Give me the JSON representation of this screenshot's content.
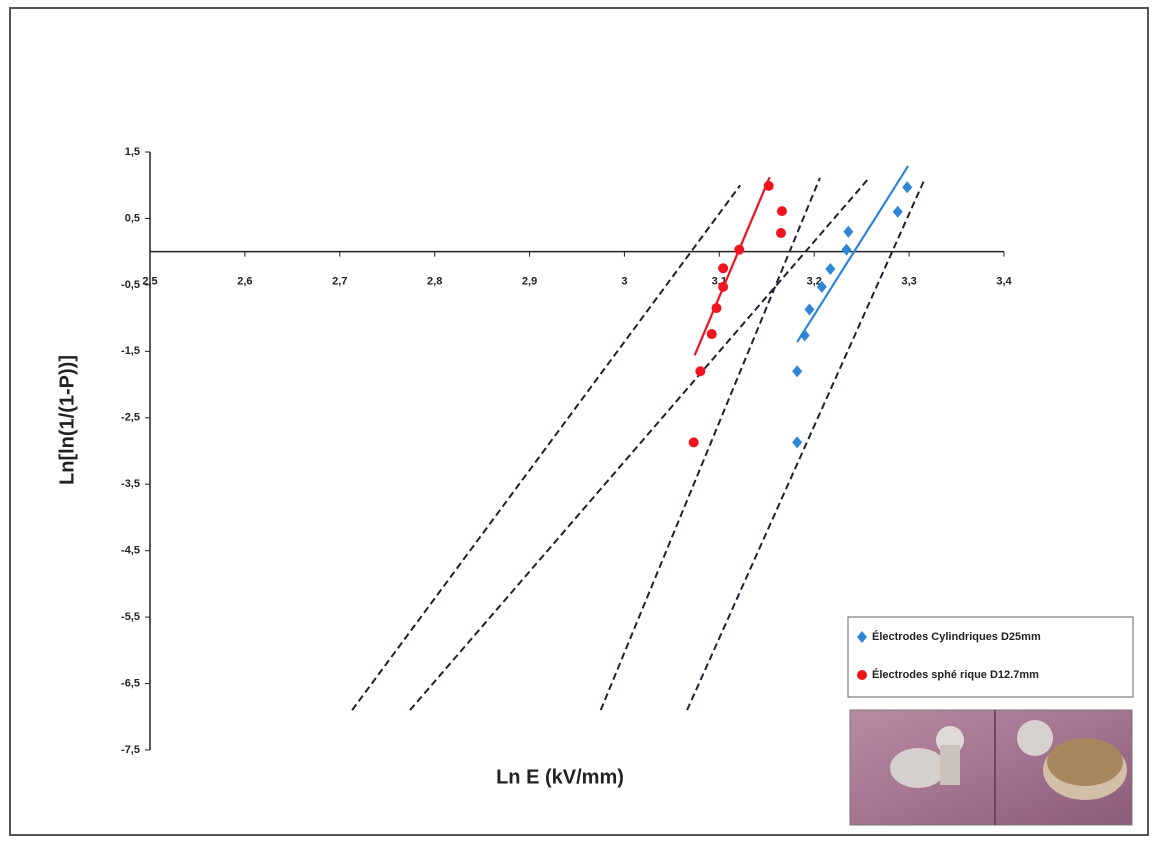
{
  "chart_data": {
    "type": "scatter",
    "x_label": "Ln E (kV/mm)",
    "y_label": "Ln[ln(1/(1-P))]",
    "xlim": [
      2.5,
      3.4
    ],
    "ylim": [
      -7.5,
      1.5
    ],
    "xticks": [
      {
        "value": 2.5,
        "label": "2,5"
      },
      {
        "value": 2.6,
        "label": "2,6"
      },
      {
        "value": 2.7,
        "label": "2,7"
      },
      {
        "value": 2.8,
        "label": "2,8"
      },
      {
        "value": 2.9,
        "label": "2,9"
      },
      3,
      {
        "value": 3.1,
        "label": "3,1"
      },
      {
        "value": 3.2,
        "label": "3,2"
      },
      {
        "value": 3.3,
        "label": "3,3"
      },
      {
        "value": 3.4,
        "label": "3,4"
      }
    ],
    "yticks": [
      {
        "value": 1.5,
        "label": "1,5"
      },
      {
        "value": 0.5,
        "label": "0,5"
      },
      {
        "value": -0.5,
        "label": "-0,5"
      },
      {
        "value": -1.5,
        "label": "-1,5"
      },
      {
        "value": -2.5,
        "label": "-2,5"
      },
      {
        "value": -3.5,
        "label": "-3,5"
      },
      {
        "value": -4.5,
        "label": "-4,5"
      },
      {
        "value": -5.5,
        "label": "-5,5"
      },
      {
        "value": -6.5,
        "label": "-6,5"
      },
      {
        "value": -7.5,
        "label": "-7,5"
      }
    ],
    "legend": "lower right",
    "series": [
      {
        "name": "Électrodes Cylindriques D25mm",
        "color": "#2e86d6",
        "marker": "diamond",
        "x": [
          3.298,
          3.288,
          3.236,
          3.234,
          3.217,
          3.208,
          3.195,
          3.19,
          3.182,
          3.182
        ],
        "values": [
          0.97,
          0.6,
          0.3,
          0.03,
          -0.26,
          -0.53,
          -0.87,
          -1.26,
          -1.8,
          -2.87
        ]
      },
      {
        "name": "Électrodes sphé rique D12.7mm",
        "color": "#f0141e",
        "marker": "circle",
        "x": [
          3.152,
          3.166,
          3.165,
          3.121,
          3.104,
          3.104,
          3.097,
          3.092,
          3.08,
          3.073
        ],
        "values": [
          0.99,
          0.61,
          0.28,
          0.03,
          -0.25,
          -0.53,
          -0.85,
          -1.24,
          -1.8,
          -2.87
        ]
      }
    ],
    "lines": [
      {
        "color": "#f0141e",
        "dashed": false,
        "x": [
          3.074,
          3.153
        ],
        "values": [
          -1.56,
          1.12
        ]
      },
      {
        "color": "#2e86d6",
        "dashed": false,
        "x": [
          3.182,
          3.299
        ],
        "values": [
          -1.36,
          1.29
        ]
      },
      {
        "color": "#1a2233",
        "dashed": true,
        "x": [
          2.713,
          3.122
        ],
        "values": [
          -6.9,
          1.0
        ]
      },
      {
        "color": "#1a2233",
        "dashed": true,
        "x": [
          2.774,
          3.256
        ],
        "values": [
          -6.9,
          1.08
        ]
      },
      {
        "color": "#1a2233",
        "dashed": true,
        "x": [
          2.975,
          3.206
        ],
        "values": [
          -6.9,
          1.11
        ]
      },
      {
        "color": "#1a2233",
        "dashed": true,
        "x": [
          3.066,
          3.316
        ],
        "values": [
          -6.9,
          1.08
        ]
      }
    ]
  }
}
